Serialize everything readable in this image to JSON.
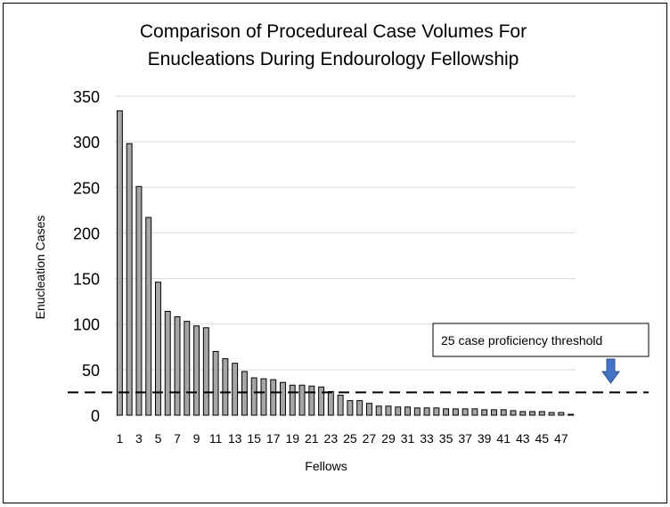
{
  "chart_data": {
    "type": "bar",
    "title": [
      "Comparison of Procedureal Case Volumes For",
      "Enucleations During Endourology Fellowship"
    ],
    "xlabel": "Fellows",
    "ylabel": "Enucleation Cases",
    "ylim": [
      0,
      350
    ],
    "yticks": [
      0,
      50,
      100,
      150,
      200,
      250,
      300,
      350
    ],
    "categories": [
      1,
      2,
      3,
      4,
      5,
      6,
      7,
      8,
      9,
      10,
      11,
      12,
      13,
      14,
      15,
      16,
      17,
      18,
      19,
      20,
      21,
      22,
      23,
      24,
      25,
      26,
      27,
      28,
      29,
      30,
      31,
      32,
      33,
      34,
      35,
      36,
      37,
      38,
      39,
      40,
      41,
      42,
      43,
      44,
      45,
      46,
      47,
      48
    ],
    "xtick_labels": [
      "1",
      "3",
      "5",
      "7",
      "9",
      "11",
      "13",
      "15",
      "17",
      "19",
      "21",
      "23",
      "25",
      "27",
      "29",
      "31",
      "33",
      "35",
      "37",
      "39",
      "41",
      "43",
      "45",
      "47"
    ],
    "values": [
      334,
      298,
      251,
      217,
      146,
      114,
      108,
      103,
      98,
      96,
      70,
      62,
      57,
      48,
      41,
      40,
      39,
      36,
      33,
      33,
      32,
      31,
      26,
      22,
      16,
      16,
      13,
      10,
      10,
      9,
      9,
      8,
      8,
      8,
      7,
      7,
      7,
      7,
      6,
      6,
      6,
      5,
      4,
      4,
      4,
      3,
      3,
      1
    ],
    "threshold": {
      "value": 25,
      "label": "25 case proficiency threshold"
    },
    "grid": true,
    "colors": {
      "bar": "#a6a6a6",
      "arrow": "#4472c4"
    }
  }
}
